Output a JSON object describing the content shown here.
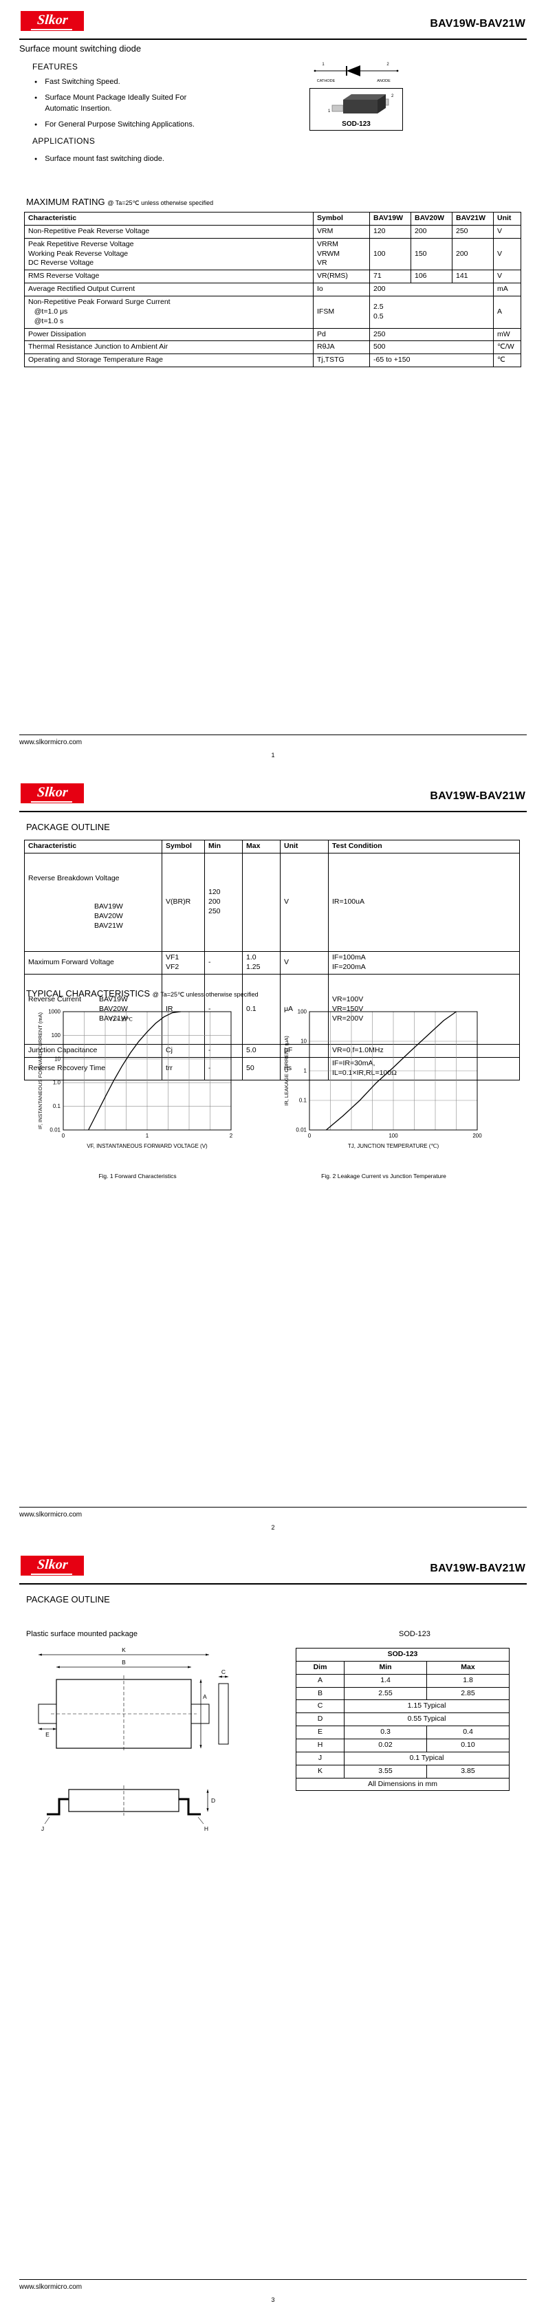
{
  "brand": {
    "logo_text": "Slkor",
    "logo_bg": "#e60012",
    "title": "BAV19W-BAV21W"
  },
  "footer": {
    "url": "www.slkormicro.com",
    "page_numbers": [
      "1",
      "2",
      "3"
    ]
  },
  "page1": {
    "subtitle": "Surface mount switching diode",
    "features_heading": "FEATURES",
    "features": [
      "Fast Switching Speed.",
      "Surface Mount Package Ideally Suited For Automatic Insertion.",
      "For General Purpose Switching Applications."
    ],
    "applications_heading": "APPLICATIONS",
    "applications": [
      "Surface mount fast switching diode."
    ],
    "diode": {
      "pin1": "1",
      "pin2": "2",
      "cathode": "CATHODE",
      "anode": "ANODE"
    },
    "package": {
      "label": "SOD-123",
      "pin1": "1",
      "pin2": "2"
    },
    "max_rating": {
      "heading": "MAXIMUM RATING",
      "condition": "@ Ta=25℃ unless otherwise specified",
      "headers": [
        "Characteristic",
        "Symbol",
        "BAV19W",
        "BAV20W",
        "BAV21W",
        "Unit"
      ],
      "rows": [
        {
          "c": "Non-Repetitive Peak Reverse Voltage",
          "sym": "VRM",
          "v19": "120",
          "v20": "200",
          "v21": "250",
          "unit": "V"
        },
        {
          "c": "Peak Repetitive Reverse Voltage\nWorking Peak Reverse Voltage\nDC Reverse Voltage",
          "sym": "VRRM\nVRWM\nVR",
          "v19": "100",
          "v20": "150",
          "v21": "200",
          "unit": "V"
        },
        {
          "c": "RMS Reverse Voltage",
          "sym": "VR(RMS)",
          "v19": "71",
          "v20": "106",
          "v21": "141",
          "unit": "V"
        },
        {
          "c": "Average Rectified Output Current",
          "sym": "Io",
          "value": "200",
          "unit": "mA"
        },
        {
          "c": "Non-Repetitive Peak Forward Surge Current\n   @t=1.0 μs\n   @t=1.0 s",
          "sym": "IFSM",
          "value": "2.5\n0.5",
          "unit": "A"
        },
        {
          "c": "Power Dissipation",
          "sym": "Pd",
          "value": "250",
          "unit": "mW"
        },
        {
          "c": "Thermal Resistance Junction to Ambient Air",
          "sym": "RθJA",
          "value": "500",
          "unit": "℃/W"
        },
        {
          "c": "Operating and Storage Temperature Rage",
          "sym": "Tj,TSTG",
          "value": "-65 to +150",
          "unit": "℃"
        }
      ]
    }
  },
  "page2": {
    "section_heading": "PACKAGE OUTLINE",
    "elec_table": {
      "headers": [
        "Characteristic",
        "Symbol",
        "Min",
        "Max",
        "Unit",
        "Test Condition"
      ],
      "rows": [
        {
          "c": "Reverse Breakdown Voltage",
          "c_sub": "BAV19W\nBAV20W\nBAV21W",
          "sym": "V(BR)R",
          "min": "120\n200\n250",
          "max": "",
          "unit": "V",
          "test": "IR=100uA"
        },
        {
          "c": "Maximum Forward Voltage",
          "c_sub": "",
          "sym": "VF1\nVF2",
          "min": "-",
          "max": "1.0\n1.25",
          "unit": "V",
          "test": "IF=100mA\nIF=200mA"
        },
        {
          "c": "Reverse Current",
          "c_sub": "BAV19W\nBAV20W\nBAV21W",
          "sym": "IR",
          "min": "-",
          "max": "0.1",
          "unit": "μA",
          "test": "VR=100V\nVR=150V\nVR=200V"
        },
        {
          "c": "Junction Capacitance",
          "c_sub": "",
          "sym": "Cj",
          "min": "-",
          "max": "5.0",
          "unit": "pF",
          "test": "VR=0,f=1.0MHz"
        },
        {
          "c": "Reverse Recovery Time",
          "c_sub": "",
          "sym": "trr",
          "min": "-",
          "max": "50",
          "unit": "ns",
          "test": "IF=IR=30mA,\nIL=0.1×IR,RL=100Ω"
        }
      ]
    },
    "typical_heading": "TYPICAL CHARACTERISTICS",
    "typical_condition": "@ Ta=25℃ unless otherwise specified"
  },
  "page3": {
    "section_heading": "PACKAGE OUTLINE",
    "package_type": "Plastic surface mounted package",
    "package_name": "SOD-123",
    "dim_table": {
      "title": "SOD-123",
      "headers": [
        "Dim",
        "Min",
        "Max"
      ],
      "rows": [
        {
          "dim": "A",
          "min": "1.4",
          "max": "1.8"
        },
        {
          "dim": "B",
          "min": "2.55",
          "max": "2.85"
        },
        {
          "dim": "C",
          "typ": "1.15 Typical"
        },
        {
          "dim": "D",
          "typ": "0.55 Typical"
        },
        {
          "dim": "E",
          "min": "0.3",
          "max": "0.4"
        },
        {
          "dim": "H",
          "min": "0.02",
          "max": "0.10"
        },
        {
          "dim": "J",
          "typ": "0.1 Typical"
        },
        {
          "dim": "K",
          "min": "3.55",
          "max": "3.85"
        }
      ],
      "note": "All Dimensions in mm"
    },
    "drawing_labels": {
      "K": "K",
      "B": "B",
      "A": "A",
      "C": "C",
      "E": "E",
      "D": "D",
      "H": "H",
      "J": "J"
    }
  },
  "chart_data": [
    {
      "type": "line",
      "title": "Fig. 1  Forward Characteristics",
      "xlabel": "VF, INSTANTANEOUS FORWARD VOLTAGE (V)",
      "ylabel": "IF, INSTANTANEOUS FORWARD CURRENT (mA)",
      "annotation": "TJ = 25℃",
      "annotation_xy": [
        0.55,
        400
      ],
      "x_range": [
        0,
        2
      ],
      "x_ticks": [
        0,
        1,
        2
      ],
      "x_minor_step": 0.25,
      "y_decades": [
        0.01,
        1000
      ],
      "y_tick_labels": [
        "0.01",
        "0.1",
        "1.0",
        "10",
        "100",
        "1000"
      ],
      "grid": true,
      "legend": "none",
      "series": [
        {
          "name": "IF",
          "x": [
            0.3,
            0.4,
            0.5,
            0.6,
            0.7,
            0.8,
            0.9,
            1.0,
            1.1,
            1.2,
            1.3,
            1.4
          ],
          "y": [
            0.01,
            0.05,
            0.25,
            1.2,
            5,
            18,
            55,
            140,
            320,
            600,
            900,
            1000
          ]
        }
      ]
    },
    {
      "type": "line",
      "title": "Fig. 2  Leakage Current vs Junction Temperature",
      "xlabel": "TJ, JUNCTION TEMPERATURE (℃)",
      "ylabel": "IR, LEAKAGE CURRENT (μA)",
      "x_range": [
        0,
        200
      ],
      "x_ticks": [
        0,
        100,
        200
      ],
      "x_minor_step": 25,
      "y_decades": [
        0.01,
        100
      ],
      "y_tick_labels": [
        "0.01",
        "0.1",
        "1",
        "10",
        "100"
      ],
      "grid": true,
      "legend": "none",
      "series": [
        {
          "name": "IR",
          "x": [
            20,
            40,
            60,
            80,
            100,
            120,
            140,
            160,
            175
          ],
          "y": [
            0.01,
            0.03,
            0.1,
            0.4,
            1.3,
            4.5,
            15,
            50,
            100
          ]
        }
      ]
    }
  ]
}
